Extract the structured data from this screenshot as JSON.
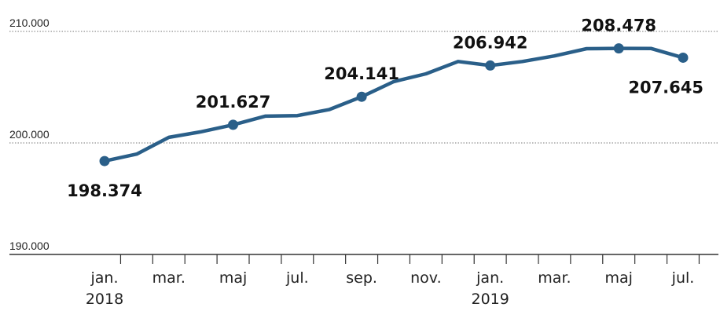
{
  "chart_data": {
    "type": "line",
    "title": "",
    "xlabel": "",
    "ylabel": "",
    "ylim": [
      190000,
      210000
    ],
    "yticks": [
      {
        "value": 190000,
        "label": "190.000"
      },
      {
        "value": 200000,
        "label": "200.000"
      },
      {
        "value": 210000,
        "label": "210.000"
      }
    ],
    "x_tick_labels": [
      {
        "index": 0,
        "lines": [
          "jan.",
          "2018"
        ]
      },
      {
        "index": 2,
        "lines": [
          "mar.",
          ""
        ]
      },
      {
        "index": 4,
        "lines": [
          "maj",
          ""
        ]
      },
      {
        "index": 6,
        "lines": [
          "jul.",
          ""
        ]
      },
      {
        "index": 8,
        "lines": [
          "sep.",
          ""
        ]
      },
      {
        "index": 10,
        "lines": [
          "nov.",
          ""
        ]
      },
      {
        "index": 12,
        "lines": [
          "jan.",
          "2019"
        ]
      },
      {
        "index": 14,
        "lines": [
          "mar.",
          ""
        ]
      },
      {
        "index": 16,
        "lines": [
          "maj",
          ""
        ]
      },
      {
        "index": 18,
        "lines": [
          "jul.",
          ""
        ]
      }
    ],
    "x": [
      "2018-01",
      "2018-02",
      "2018-03",
      "2018-04",
      "2018-05",
      "2018-06",
      "2018-07",
      "2018-08",
      "2018-09",
      "2018-10",
      "2018-11",
      "2018-12",
      "2019-01",
      "2019-02",
      "2019-03",
      "2019-04",
      "2019-05",
      "2019-06",
      "2019-07"
    ],
    "series": [
      {
        "values": [
          198374,
          199000,
          200500,
          201000,
          201627,
          202400,
          202450,
          203000,
          204141,
          205500,
          206200,
          207300,
          206942,
          207300,
          207800,
          208450,
          208478,
          208470,
          207645
        ],
        "color": "#2a5f89"
      }
    ],
    "highlighted_points": [
      {
        "index": 0,
        "label": "198.374",
        "position": "below"
      },
      {
        "index": 4,
        "label": "201.627",
        "position": "above"
      },
      {
        "index": 8,
        "label": "204.141",
        "position": "above"
      },
      {
        "index": 12,
        "label": "206.942",
        "position": "above"
      },
      {
        "index": 16,
        "label": "208.478",
        "position": "above"
      },
      {
        "index": 18,
        "label": "207.645",
        "position": "below"
      }
    ],
    "grid": true,
    "gridline_color": "#777777"
  }
}
